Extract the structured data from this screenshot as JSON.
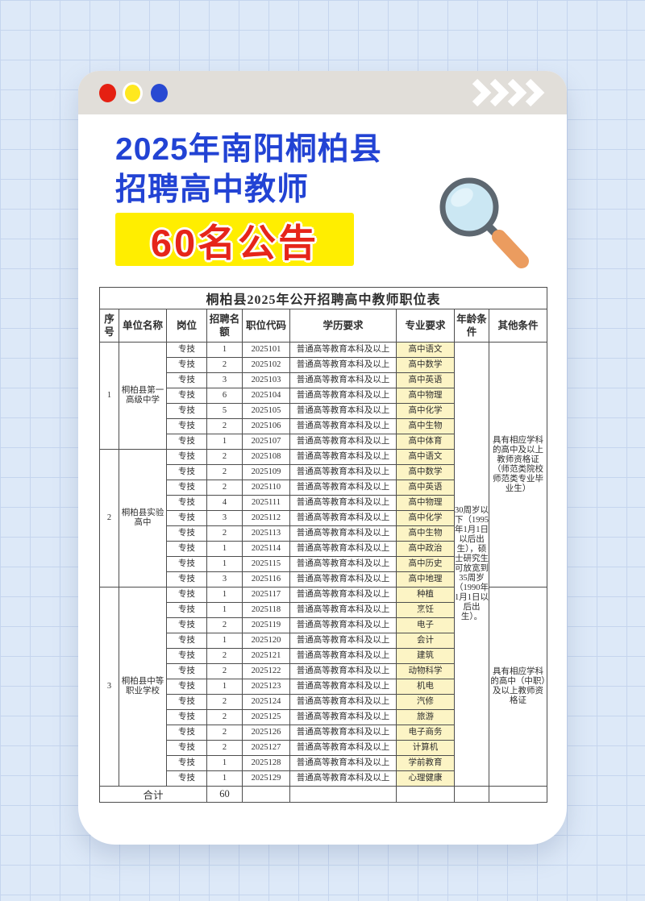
{
  "window": {
    "dots": [
      "close-red",
      "minimize-yellow",
      "maximize-blue"
    ],
    "chevron_count": 4
  },
  "header": {
    "title_line1": "2025年南阳桐柏县",
    "title_line2": "招聘高中教师",
    "badge": "60名公告"
  },
  "table": {
    "title": "桐柏县2025年公开招聘高中教师职位表",
    "columns": [
      "序号",
      "单位名称",
      "岗位",
      "招聘名额",
      "职位代码",
      "学历要求",
      "专业要求",
      "年龄条件",
      "其他条件"
    ],
    "sections": [
      {
        "no": "1",
        "unit": "桐柏县第一高级中学",
        "rows": [
          {
            "post": "专技",
            "quota": "1",
            "code": "2025101",
            "edu": "普通高等教育本科及以上",
            "major": "高中语文"
          },
          {
            "post": "专技",
            "quota": "2",
            "code": "2025102",
            "edu": "普通高等教育本科及以上",
            "major": "高中数学"
          },
          {
            "post": "专技",
            "quota": "3",
            "code": "2025103",
            "edu": "普通高等教育本科及以上",
            "major": "高中英语"
          },
          {
            "post": "专技",
            "quota": "6",
            "code": "2025104",
            "edu": "普通高等教育本科及以上",
            "major": "高中物理"
          },
          {
            "post": "专技",
            "quota": "5",
            "code": "2025105",
            "edu": "普通高等教育本科及以上",
            "major": "高中化学"
          },
          {
            "post": "专技",
            "quota": "2",
            "code": "2025106",
            "edu": "普通高等教育本科及以上",
            "major": "高中生物"
          },
          {
            "post": "专技",
            "quota": "1",
            "code": "2025107",
            "edu": "普通高等教育本科及以上",
            "major": "高中体育"
          }
        ]
      },
      {
        "no": "2",
        "unit": "桐柏县实验高中",
        "rows": [
          {
            "post": "专技",
            "quota": "2",
            "code": "2025108",
            "edu": "普通高等教育本科及以上",
            "major": "高中语文"
          },
          {
            "post": "专技",
            "quota": "2",
            "code": "2025109",
            "edu": "普通高等教育本科及以上",
            "major": "高中数学"
          },
          {
            "post": "专技",
            "quota": "2",
            "code": "2025110",
            "edu": "普通高等教育本科及以上",
            "major": "高中英语"
          },
          {
            "post": "专技",
            "quota": "4",
            "code": "2025111",
            "edu": "普通高等教育本科及以上",
            "major": "高中物理"
          },
          {
            "post": "专技",
            "quota": "3",
            "code": "2025112",
            "edu": "普通高等教育本科及以上",
            "major": "高中化学"
          },
          {
            "post": "专技",
            "quota": "2",
            "code": "2025113",
            "edu": "普通高等教育本科及以上",
            "major": "高中生物"
          },
          {
            "post": "专技",
            "quota": "1",
            "code": "2025114",
            "edu": "普通高等教育本科及以上",
            "major": "高中政治"
          },
          {
            "post": "专技",
            "quota": "1",
            "code": "2025115",
            "edu": "普通高等教育本科及以上",
            "major": "高中历史"
          },
          {
            "post": "专技",
            "quota": "3",
            "code": "2025116",
            "edu": "普通高等教育本科及以上",
            "major": "高中地理"
          }
        ]
      },
      {
        "no": "3",
        "unit": "桐柏县中等职业学校",
        "rows": [
          {
            "post": "专技",
            "quota": "1",
            "code": "2025117",
            "edu": "普通高等教育本科及以上",
            "major": "种植"
          },
          {
            "post": "专技",
            "quota": "1",
            "code": "2025118",
            "edu": "普通高等教育本科及以上",
            "major": "烹饪"
          },
          {
            "post": "专技",
            "quota": "2",
            "code": "2025119",
            "edu": "普通高等教育本科及以上",
            "major": "电子"
          },
          {
            "post": "专技",
            "quota": "1",
            "code": "2025120",
            "edu": "普通高等教育本科及以上",
            "major": "会计"
          },
          {
            "post": "专技",
            "quota": "2",
            "code": "2025121",
            "edu": "普通高等教育本科及以上",
            "major": "建筑"
          },
          {
            "post": "专技",
            "quota": "2",
            "code": "2025122",
            "edu": "普通高等教育本科及以上",
            "major": "动物科学"
          },
          {
            "post": "专技",
            "quota": "1",
            "code": "2025123",
            "edu": "普通高等教育本科及以上",
            "major": "机电"
          },
          {
            "post": "专技",
            "quota": "2",
            "code": "2025124",
            "edu": "普通高等教育本科及以上",
            "major": "汽修"
          },
          {
            "post": "专技",
            "quota": "2",
            "code": "2025125",
            "edu": "普通高等教育本科及以上",
            "major": "旅游"
          },
          {
            "post": "专技",
            "quota": "2",
            "code": "2025126",
            "edu": "普通高等教育本科及以上",
            "major": "电子商务"
          },
          {
            "post": "专技",
            "quota": "2",
            "code": "2025127",
            "edu": "普通高等教育本科及以上",
            "major": "计算机"
          },
          {
            "post": "专技",
            "quota": "1",
            "code": "2025128",
            "edu": "普通高等教育本科及以上",
            "major": "学前教育"
          },
          {
            "post": "专技",
            "quota": "1",
            "code": "2025129",
            "edu": "普通高等教育本科及以上",
            "major": "心理健康"
          }
        ]
      }
    ],
    "age_condition": "30周岁以下（1995年1月1日以后出生），硕士研究生可放宽到35周岁（1990年1月1日以后出生）。",
    "other_conditions": [
      {
        "text": "具有相应学科的高中及以上教师资格证（师范类院校师范类专业毕业生）",
        "row_span": 16
      },
      {
        "text": "具有相应学科的高中（中职）及以上教师资格证",
        "row_span": 13
      }
    ],
    "total_label": "合计",
    "total_quota": "60"
  },
  "colors": {
    "page_background": "#dde9f8",
    "grid_line": "#c5d5ee",
    "card": "#ffffff",
    "topbar": "#e1ded9",
    "title_blue": "#2243d4",
    "badge_yellow": "#ffee00",
    "badge_red": "#e6251a",
    "major_cell_yellow": "#fcf4c5",
    "table_border": "#4d4d4d",
    "dot_red": "#e52012",
    "dot_yellow": "#ffe81f",
    "dot_blue": "#2849d2"
  }
}
